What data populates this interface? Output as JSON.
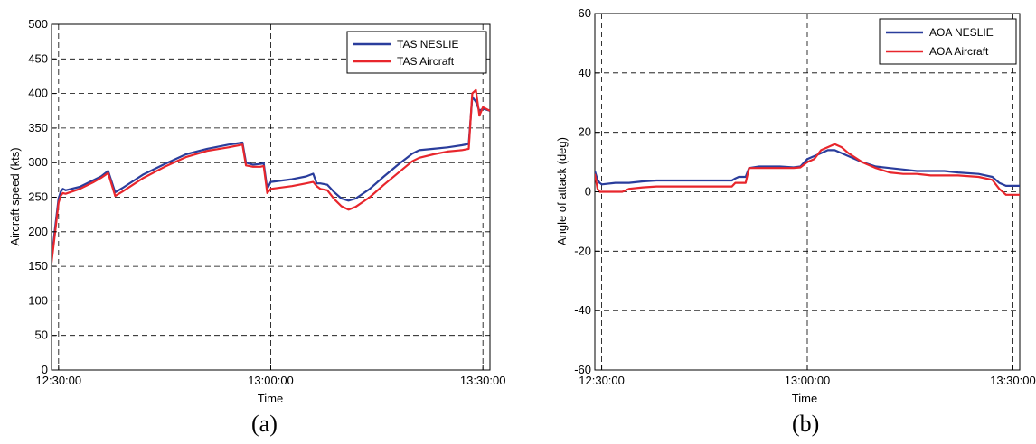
{
  "chart_data": [
    {
      "type": "line",
      "caption": "(a)",
      "xlabel": "Time",
      "ylabel": "Aircraft speed (kts)",
      "x_ticks": [
        "12:30:00",
        "13:00:00",
        "13:30:00"
      ],
      "x_tick_minutes": [
        0,
        30,
        60
      ],
      "xlim_minutes": [
        -1,
        61
      ],
      "ylim": [
        0,
        500
      ],
      "y_ticks": [
        0,
        50,
        100,
        150,
        200,
        250,
        300,
        350,
        400,
        450,
        500
      ],
      "grid": true,
      "legend_position": "top-right",
      "series": [
        {
          "name": "TAS NESLIE",
          "color": "#2a3d9c",
          "points": [
            [
              -1,
              160
            ],
            [
              -0.5,
              205
            ],
            [
              0,
              248
            ],
            [
              0.3,
              258
            ],
            [
              0.6,
              262
            ],
            [
              1,
              260
            ],
            [
              3,
              265
            ],
            [
              5,
              275
            ],
            [
              6,
              280
            ],
            [
              7,
              288
            ],
            [
              8,
              257
            ],
            [
              9,
              263
            ],
            [
              12,
              283
            ],
            [
              15,
              298
            ],
            [
              18,
              312
            ],
            [
              21,
              320
            ],
            [
              24,
              326
            ],
            [
              26,
              329
            ],
            [
              26.5,
              300
            ],
            [
              27.5,
              297
            ],
            [
              28.5,
              298
            ],
            [
              29,
              299
            ],
            [
              29.5,
              262
            ],
            [
              30,
              272
            ],
            [
              33,
              276
            ],
            [
              35,
              280
            ],
            [
              36,
              284
            ],
            [
              36.5,
              270
            ],
            [
              37,
              270
            ],
            [
              38,
              268
            ],
            [
              39,
              257
            ],
            [
              40,
              248
            ],
            [
              41,
              245
            ],
            [
              42,
              248
            ],
            [
              44,
              262
            ],
            [
              46,
              280
            ],
            [
              48,
              297
            ],
            [
              50,
              313
            ],
            [
              51,
              318
            ],
            [
              53,
              320
            ],
            [
              55,
              322
            ],
            [
              57,
              325
            ],
            [
              58,
              327
            ],
            [
              58.5,
              395
            ],
            [
              59,
              388
            ],
            [
              59.5,
              375
            ],
            [
              60,
              378
            ],
            [
              61,
              375
            ]
          ]
        },
        {
          "name": "TAS Aircraft",
          "color": "#e8262c",
          "points": [
            [
              -1,
              155
            ],
            [
              -0.5,
              198
            ],
            [
              0,
              242
            ],
            [
              0.3,
              252
            ],
            [
              0.6,
              256
            ],
            [
              1,
              255
            ],
            [
              3,
              262
            ],
            [
              5,
              272
            ],
            [
              6,
              278
            ],
            [
              7,
              285
            ],
            [
              8,
              252
            ],
            [
              9,
              258
            ],
            [
              12,
              278
            ],
            [
              15,
              294
            ],
            [
              18,
              308
            ],
            [
              21,
              317
            ],
            [
              24,
              322
            ],
            [
              26,
              326
            ],
            [
              26.5,
              296
            ],
            [
              27.5,
              294
            ],
            [
              28.5,
              294
            ],
            [
              29,
              295
            ],
            [
              29.5,
              256
            ],
            [
              30,
              262
            ],
            [
              33,
              266
            ],
            [
              35,
              270
            ],
            [
              36,
              272
            ],
            [
              36.5,
              266
            ],
            [
              37,
              262
            ],
            [
              38,
              260
            ],
            [
              39,
              247
            ],
            [
              40,
              237
            ],
            [
              41,
              232
            ],
            [
              42,
              236
            ],
            [
              44,
              250
            ],
            [
              46,
              268
            ],
            [
              48,
              285
            ],
            [
              50,
              302
            ],
            [
              51,
              307
            ],
            [
              53,
              312
            ],
            [
              55,
              316
            ],
            [
              57,
              318
            ],
            [
              58,
              320
            ],
            [
              58.5,
              400
            ],
            [
              59,
              405
            ],
            [
              59.5,
              368
            ],
            [
              60,
              380
            ],
            [
              61,
              375
            ]
          ]
        }
      ]
    },
    {
      "type": "line",
      "caption": "(b)",
      "xlabel": "Time",
      "ylabel": "Angle of attack (deg)",
      "x_ticks": [
        "12:30:00",
        "13:00:00",
        "13:30:00"
      ],
      "x_tick_minutes": [
        0,
        30,
        60
      ],
      "xlim_minutes": [
        -1,
        61
      ],
      "ylim": [
        -60,
        60
      ],
      "y_ticks": [
        -60,
        -40,
        -20,
        0,
        20,
        40,
        60
      ],
      "grid": true,
      "legend_position": "top-right",
      "series": [
        {
          "name": "AOA NESLIE",
          "color": "#2a3d9c",
          "points": [
            [
              -1,
              7
            ],
            [
              -0.6,
              4
            ],
            [
              -0.3,
              3
            ],
            [
              0,
              2.5
            ],
            [
              2,
              3
            ],
            [
              4,
              3
            ],
            [
              6,
              3.5
            ],
            [
              8,
              3.8
            ],
            [
              12,
              3.8
            ],
            [
              16,
              3.8
            ],
            [
              19,
              3.8
            ],
            [
              19.5,
              4.5
            ],
            [
              20,
              5
            ],
            [
              21,
              5
            ],
            [
              21.5,
              8
            ],
            [
              23,
              8.5
            ],
            [
              26,
              8.5
            ],
            [
              28,
              8.2
            ],
            [
              29,
              8.5
            ],
            [
              30,
              11
            ],
            [
              31,
              12
            ],
            [
              32,
              13
            ],
            [
              33,
              14
            ],
            [
              34,
              14
            ],
            [
              36,
              12
            ],
            [
              38,
              10
            ],
            [
              40,
              8.5
            ],
            [
              42,
              8
            ],
            [
              44,
              7.5
            ],
            [
              46,
              7
            ],
            [
              48,
              7
            ],
            [
              50,
              7
            ],
            [
              52,
              6.5
            ],
            [
              55,
              6
            ],
            [
              57,
              5
            ],
            [
              58,
              3
            ],
            [
              59,
              2
            ],
            [
              60,
              2
            ],
            [
              61,
              2
            ]
          ]
        },
        {
          "name": "AOA Aircraft",
          "color": "#e8262c",
          "points": [
            [
              -1,
              6
            ],
            [
              -0.6,
              1
            ],
            [
              -0.3,
              0
            ],
            [
              0,
              0
            ],
            [
              2,
              0
            ],
            [
              3,
              0
            ],
            [
              4,
              1
            ],
            [
              6,
              1.5
            ],
            [
              8,
              1.8
            ],
            [
              12,
              1.8
            ],
            [
              16,
              1.8
            ],
            [
              19,
              1.8
            ],
            [
              19.5,
              3
            ],
            [
              20,
              3
            ],
            [
              21,
              3
            ],
            [
              21.5,
              8
            ],
            [
              23,
              8
            ],
            [
              26,
              8
            ],
            [
              28,
              8
            ],
            [
              29,
              8.2
            ],
            [
              30,
              10
            ],
            [
              31,
              11
            ],
            [
              32,
              14
            ],
            [
              33,
              15
            ],
            [
              34,
              16
            ],
            [
              35,
              15
            ],
            [
              36,
              13
            ],
            [
              38,
              10
            ],
            [
              40,
              8
            ],
            [
              42,
              6.5
            ],
            [
              44,
              6
            ],
            [
              46,
              6
            ],
            [
              48,
              5.5
            ],
            [
              50,
              5.5
            ],
            [
              52,
              5.5
            ],
            [
              55,
              5
            ],
            [
              57,
              4
            ],
            [
              58,
              1
            ],
            [
              59,
              -1
            ],
            [
              60,
              -1
            ],
            [
              61,
              -1
            ]
          ]
        }
      ]
    }
  ]
}
